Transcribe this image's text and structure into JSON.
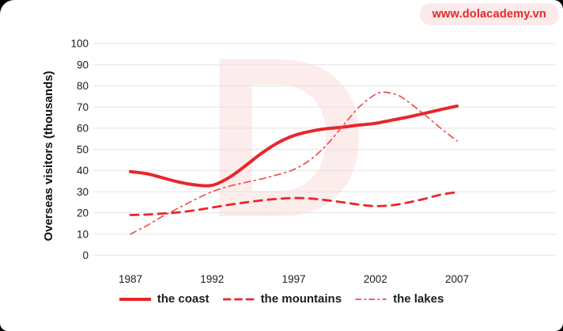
{
  "header": {
    "site_badge": "www.dolacademy.vn"
  },
  "watermark": {
    "letter": "D"
  },
  "colors": {
    "brand_red": "#e8262b",
    "lakes_red": "#ec4f51",
    "badge_bg": "#fce9e9",
    "watermark_pink": "#fcecec",
    "gridline": "#e4e4e4",
    "tick_text": "#1c1c1c"
  },
  "chart_data": {
    "type": "line",
    "title": "",
    "xlabel": "",
    "ylabel": "Overseas visitors (thousands)",
    "ylim": [
      0,
      100
    ],
    "ytick_step": 10,
    "yticks": [
      0,
      10,
      20,
      30,
      40,
      50,
      60,
      70,
      80,
      90,
      100
    ],
    "categories": [
      "1987",
      "1992",
      "1997",
      "2002",
      "2007"
    ],
    "grid": "horizontal",
    "legend_position": "bottom-center",
    "series": [
      {
        "name": "the coast",
        "line_style": "solid",
        "color": "#e8262b",
        "stroke_width": 4,
        "values": [
          40,
          33,
          57,
          62,
          70
        ],
        "points": [
          [
            1987,
            39.5
          ],
          [
            1988,
            38.5
          ],
          [
            1989,
            36.5
          ],
          [
            1990,
            34.5
          ],
          [
            1991,
            33.2
          ],
          [
            1992,
            33
          ],
          [
            1993,
            36.5
          ],
          [
            1994,
            42
          ],
          [
            1995,
            48
          ],
          [
            1996,
            53
          ],
          [
            1997,
            56.5
          ],
          [
            1998,
            58.5
          ],
          [
            1999,
            59.8
          ],
          [
            2000,
            60.5
          ],
          [
            2001,
            61.5
          ],
          [
            2002,
            62.3
          ],
          [
            2003,
            63.8
          ],
          [
            2004,
            65.3
          ],
          [
            2005,
            67
          ],
          [
            2006,
            68.8
          ],
          [
            2007,
            70.5
          ]
        ]
      },
      {
        "name": "the mountains",
        "line_style": "dashed",
        "color": "#e8262b",
        "stroke_width": 2.8,
        "values": [
          19,
          23,
          27,
          23,
          30
        ],
        "points": [
          [
            1987,
            19
          ],
          [
            1988,
            19.2
          ],
          [
            1989,
            19.7
          ],
          [
            1990,
            20.3
          ],
          [
            1991,
            21.3
          ],
          [
            1992,
            22.5
          ],
          [
            1993,
            23.8
          ],
          [
            1994,
            24.9
          ],
          [
            1995,
            25.9
          ],
          [
            1996,
            26.6
          ],
          [
            1997,
            27
          ],
          [
            1998,
            26.8
          ],
          [
            1999,
            26
          ],
          [
            2000,
            25
          ],
          [
            2001,
            23.9
          ],
          [
            2002,
            23.2
          ],
          [
            2003,
            23.6
          ],
          [
            2004,
            24.9
          ],
          [
            2005,
            26.6
          ],
          [
            2006,
            28.6
          ],
          [
            2007,
            29.8
          ]
        ]
      },
      {
        "name": "the lakes",
        "line_style": "dashdot",
        "color": "#ec4f51",
        "stroke_width": 1.7,
        "values": [
          10,
          30,
          40,
          76,
          54
        ],
        "points": [
          [
            1987,
            10
          ],
          [
            1988,
            14
          ],
          [
            1989,
            18.5
          ],
          [
            1990,
            22.5
          ],
          [
            1991,
            26.5
          ],
          [
            1992,
            30
          ],
          [
            1993,
            32.5
          ],
          [
            1994,
            34.3
          ],
          [
            1995,
            36
          ],
          [
            1996,
            38
          ],
          [
            1997,
            40.5
          ],
          [
            1998,
            45
          ],
          [
            1999,
            52
          ],
          [
            2000,
            61
          ],
          [
            2001,
            70
          ],
          [
            2002,
            76
          ],
          [
            2002.6,
            77
          ],
          [
            2003.4,
            75.5
          ],
          [
            2004,
            72.5
          ],
          [
            2005,
            66.5
          ],
          [
            2006,
            60
          ],
          [
            2007,
            54
          ]
        ]
      }
    ]
  }
}
